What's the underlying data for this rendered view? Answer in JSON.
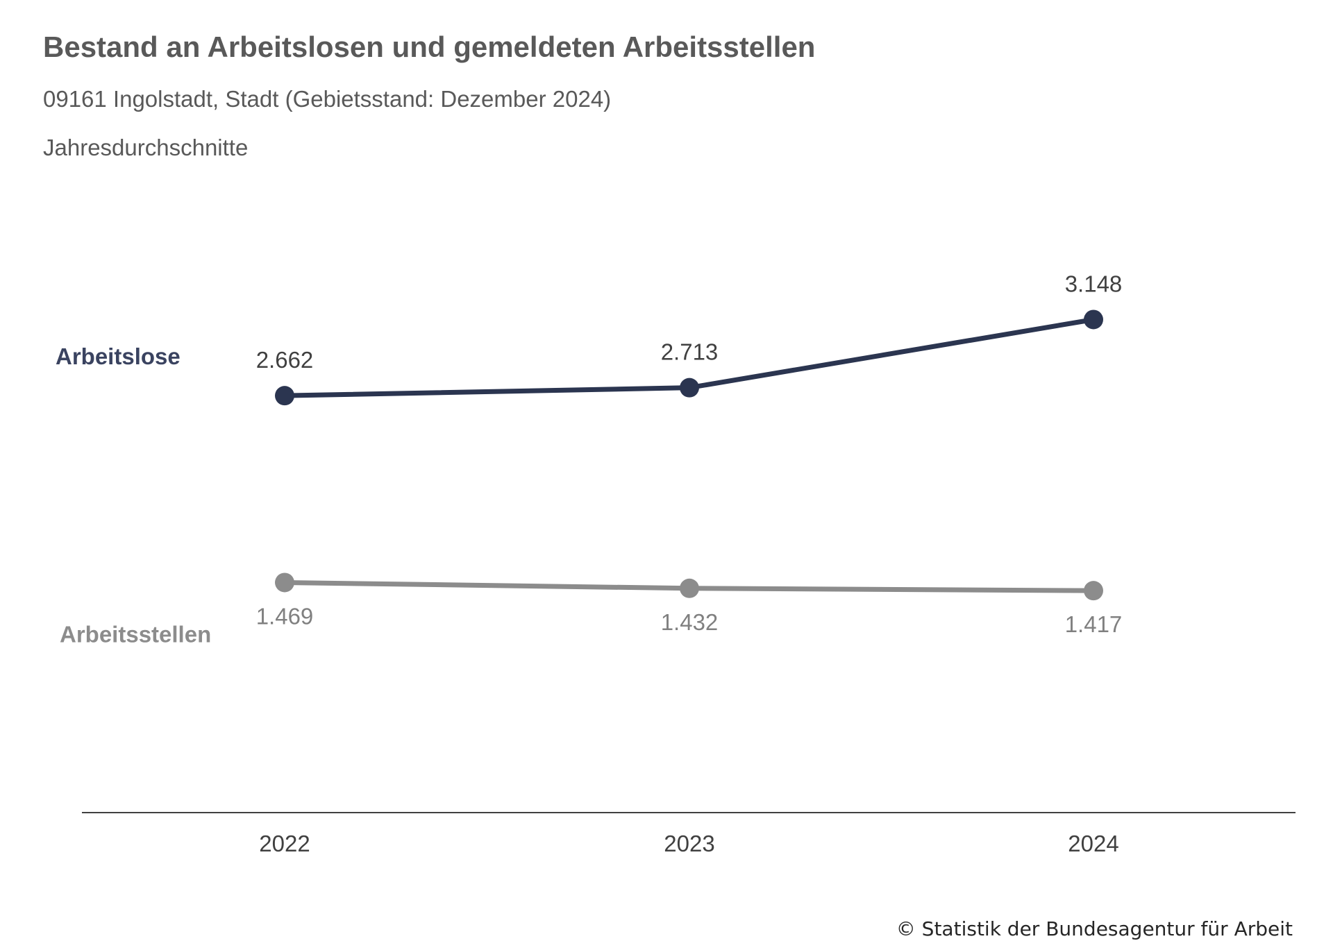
{
  "header": {
    "title": "Bestand an Arbeitslosen und gemeldeten Arbeitsstellen",
    "subtitle": "09161 Ingolstadt, Stadt (Gebietsstand: Dezember 2024)",
    "note": "Jahresdurchschnitte"
  },
  "footer": {
    "source": "© Statistik der Bundesagentur für Arbeit"
  },
  "chart_data": {
    "type": "line",
    "title": "Bestand an Arbeitslosen und gemeldeten Arbeitsstellen",
    "subtitle": "09161 Ingolstadt, Stadt (Gebietsstand: Dezember 2024)",
    "categories": [
      "2022",
      "2023",
      "2024"
    ],
    "series": [
      {
        "name": "Arbeitslose",
        "values": [
          2662,
          2713,
          3148
        ],
        "labels": [
          "2.662",
          "2.713",
          "3.148"
        ],
        "color": "#2b3550",
        "label_position": "above"
      },
      {
        "name": "Arbeitsstellen",
        "values": [
          1469,
          1432,
          1417
        ],
        "labels": [
          "1.469",
          "1.432",
          "1.417"
        ],
        "color": "#8c8c8c",
        "label_position": "below"
      }
    ],
    "ylim": [
      0,
      3400
    ],
    "y_axis_visible": false,
    "grid": false,
    "legend": "series names at left end of lines",
    "axis_color": "#404040"
  }
}
